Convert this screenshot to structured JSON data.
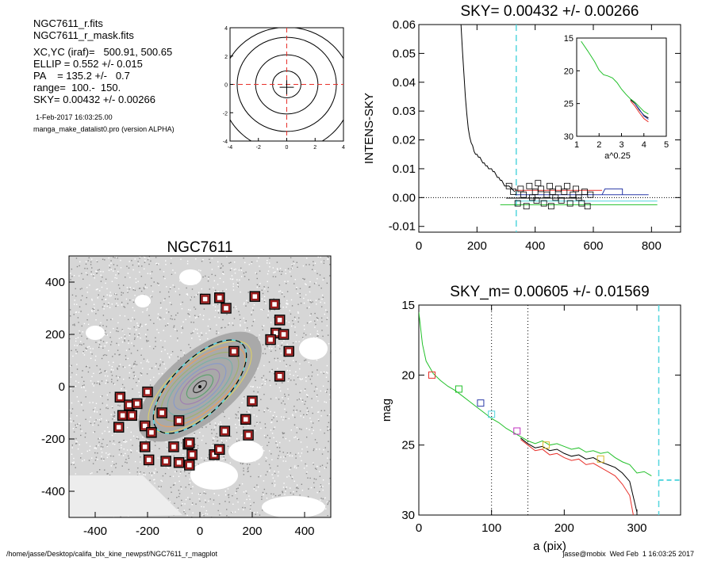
{
  "header": {
    "file1": "NGC7611_r.fits",
    "file2": "NGC7611_r_mask.fits",
    "xcyc": "XC,YC (iraf)=   500.91, 500.65",
    "ellip": "ELLIP = 0.552 +/- 0.015",
    "pa": "PA    = 135.2 +/-   0.7",
    "range": "range=  100.-  150.",
    "sky": "SKY= 0.00432 +/- 0.00266",
    "date": "1-Feb-2017 16:03:25.00",
    "program": "manga_make_datalist0.pro (version ALPHA)"
  },
  "footer": {
    "path": "/home/jasse/Desktop/califa_blx_kine_newpsf/NGC7611_r_magplot",
    "user": "jasse@mobix  Wed Feb  1 16:03:25 2017"
  },
  "colors": {
    "red": "#e8302a",
    "green": "#22c02a",
    "blue": "#2a3aa8",
    "cyan": "#55d6de",
    "magenta": "#c030c0",
    "gold": "#d9b82a"
  },
  "chart_data": [
    {
      "id": "center_contour",
      "type": "contour",
      "xlim": [
        -4,
        4
      ],
      "ylim": [
        -4,
        4
      ],
      "xticks": [
        -4,
        -2,
        0,
        2,
        4
      ],
      "yticks": [
        -4,
        -2,
        0,
        2,
        4
      ],
      "contour_radii": [
        1,
        2.2,
        3.5,
        4.6
      ]
    },
    {
      "id": "sky_profile",
      "type": "line",
      "title": "SKY= 0.00432 +/- 0.00266",
      "ylabel": "INTENS-SKY",
      "xlim": [
        0,
        900
      ],
      "ylim": [
        -0.012,
        0.06
      ],
      "xticks": [
        0,
        200,
        400,
        600,
        800
      ],
      "yticks": [
        -0.01,
        0.0,
        0.01,
        0.02,
        0.03,
        0.04,
        0.05,
        0.06
      ],
      "ytick_labels": [
        "-0.01",
        "0.00",
        "0.01",
        "0.02",
        "0.03",
        "0.04",
        "0.05",
        "0.06"
      ],
      "vline_x": 335,
      "series": [
        {
          "color": "black",
          "x": [
            145,
            150,
            155,
            160,
            165,
            170,
            175,
            180,
            185,
            190,
            195,
            200,
            205,
            210,
            215,
            220,
            225,
            230,
            235,
            240,
            245,
            250,
            255,
            260,
            265,
            270,
            275,
            280,
            285,
            290,
            295,
            300,
            310,
            320,
            330
          ],
          "y": [
            0.06,
            0.051,
            0.043,
            0.035,
            0.029,
            0.024,
            0.021,
            0.019,
            0.018,
            0.016,
            0.015,
            0.015,
            0.014,
            0.014,
            0.013,
            0.012,
            0.012,
            0.011,
            0.011,
            0.01,
            0.01,
            0.01,
            0.009,
            0.009,
            0.008,
            0.007,
            0.007,
            0.006,
            0.006,
            0.005,
            0.004,
            0.004,
            0.004,
            0.003,
            0.002
          ]
        },
        {
          "color": "black",
          "x": [
            130,
            140,
            145
          ],
          "y": [
            0.06,
            0.06,
            0.06
          ]
        }
      ],
      "sky_levels": [
        {
          "color": "red",
          "x": [
            330,
            630
          ],
          "y": 0.0025
        },
        {
          "color": "blue",
          "x": [
            330,
            790
          ],
          "y": 0.001
        },
        {
          "color": "black",
          "x": [
            300,
            560
          ],
          "y": -0.0002
        },
        {
          "color": "green",
          "x": [
            280,
            820
          ],
          "y": -0.0025
        },
        {
          "color": "cyan",
          "x": [
            330,
            820
          ],
          "y": -0.0012
        }
      ],
      "squares": {
        "x": [
          310,
          325,
          340,
          350,
          360,
          370,
          380,
          390,
          400,
          405,
          410,
          420,
          430,
          440,
          450,
          455,
          460,
          470,
          480,
          490,
          500,
          510,
          520,
          530,
          540,
          550,
          560,
          570,
          580,
          590
        ],
        "y": [
          0.004,
          0.002,
          -0.002,
          0.003,
          0.001,
          -0.003,
          0.004,
          0.0,
          0.002,
          -0.001,
          0.005,
          0.003,
          -0.002,
          0.001,
          0.004,
          -0.003,
          0.002,
          0.0,
          0.003,
          -0.001,
          0.002,
          0.004,
          -0.002,
          0.001,
          0.003,
          0.0,
          -0.002,
          0.002,
          -0.003,
          0.001
        ]
      },
      "inset": {
        "type": "line",
        "xlabel": "a^0.25",
        "xlim": [
          1,
          5
        ],
        "ylim": [
          15,
          30
        ],
        "xticks": [
          1,
          2,
          3,
          4,
          5
        ],
        "yticks": [
          15,
          20,
          25,
          30
        ],
        "series": [
          {
            "color": "green",
            "x": [
              1.2,
              1.5,
              1.8,
              2.0,
              2.2,
              2.4,
              2.6,
              2.8,
              3.0,
              3.2,
              3.4,
              3.6,
              3.8,
              4.0,
              4.2
            ],
            "y": [
              15.5,
              17.0,
              18.6,
              19.9,
              20.6,
              20.8,
              21.1,
              21.8,
              22.8,
              23.6,
              24.3,
              24.8,
              25.5,
              26.2,
              26.6
            ]
          },
          {
            "color": "black",
            "x": [
              3.4,
              3.6,
              3.8,
              4.0,
              4.2
            ],
            "y": [
              24.4,
              25.0,
              26.0,
              26.8,
              27.2
            ]
          },
          {
            "color": "red",
            "x": [
              3.4,
              3.6,
              3.8,
              4.0,
              4.2
            ],
            "y": [
              24.6,
              25.4,
              26.4,
              27.3,
              27.8
            ]
          },
          {
            "color": "blue",
            "x": [
              3.6,
              3.8,
              4.0,
              4.2
            ],
            "y": [
              25.0,
              25.9,
              26.9,
              27.4
            ]
          }
        ]
      }
    },
    {
      "id": "mask_image",
      "type": "image",
      "title": "NGC7611",
      "xlim": [
        -500,
        500
      ],
      "ylim": [
        -500,
        500
      ],
      "xticks": [
        -400,
        -200,
        0,
        200,
        400
      ],
      "yticks": [
        -400,
        -200,
        0,
        200,
        400
      ],
      "ellipse": {
        "a": 230,
        "b": 103,
        "pa_deg": 135.2
      },
      "masked_sources": {
        "x": [
          20,
          75,
          100,
          210,
          285,
          305,
          290,
          270,
          320,
          340,
          130,
          -200,
          -210,
          -145,
          -80,
          -210,
          -305,
          -295,
          -260,
          -270,
          -240,
          -310,
          -185,
          -100,
          -195,
          -45,
          -30,
          -80,
          -130,
          -40,
          -40,
          55,
          75,
          185,
          95,
          175,
          200,
          305
        ],
        "y": [
          335,
          340,
          300,
          345,
          315,
          255,
          205,
          180,
          200,
          135,
          135,
          -20,
          -150,
          -100,
          -130,
          -230,
          -40,
          -110,
          -110,
          -70,
          -65,
          -155,
          -175,
          -230,
          -280,
          -220,
          -260,
          -290,
          -285,
          -300,
          -215,
          -260,
          -240,
          -185,
          -170,
          -125,
          -55,
          40
        ]
      }
    },
    {
      "id": "mag_profile",
      "type": "line",
      "title": "SKY_m=  0.00605 +/- 0.01569",
      "xlabel": "a (pix)",
      "ylabel": "mag",
      "xlim": [
        0,
        360
      ],
      "ylim": [
        15,
        30
      ],
      "xticks": [
        0,
        100,
        200,
        300
      ],
      "yticks": [
        15,
        20,
        25,
        30
      ],
      "vlines_dotted": [
        100,
        150
      ],
      "vline_dashed": 330,
      "series": [
        {
          "color": "green",
          "x": [
            0,
            5,
            10,
            20,
            30,
            40,
            50,
            60,
            70,
            80,
            90,
            100,
            110,
            120,
            130,
            140,
            150,
            160,
            170,
            180,
            190,
            200,
            210,
            220,
            230,
            240,
            250,
            260,
            270,
            280,
            290,
            300,
            310,
            320
          ],
          "y": [
            15.5,
            17.8,
            19.0,
            19.9,
            20.4,
            20.8,
            21.1,
            21.5,
            21.9,
            22.3,
            22.7,
            23.1,
            23.4,
            23.8,
            24.1,
            24.4,
            24.7,
            24.9,
            24.7,
            25.0,
            24.9,
            25.1,
            25.3,
            25.2,
            25.5,
            25.4,
            25.6,
            25.5,
            25.9,
            26.2,
            26.4,
            27.0,
            26.9,
            27.2
          ]
        },
        {
          "color": "black",
          "x": [
            140,
            150,
            160,
            170,
            180,
            190,
            200,
            210,
            220,
            230,
            240,
            250,
            260,
            270,
            280,
            290,
            300
          ],
          "y": [
            24.5,
            24.9,
            25.2,
            25.1,
            25.4,
            25.3,
            25.6,
            25.8,
            25.7,
            26.0,
            25.9,
            26.2,
            26.4,
            26.6,
            27.0,
            27.6,
            29.8
          ]
        },
        {
          "color": "red",
          "x": [
            140,
            150,
            160,
            170,
            180,
            190,
            200,
            210,
            220,
            230,
            240,
            250,
            260,
            270,
            280,
            290,
            295
          ],
          "y": [
            24.6,
            25.0,
            25.4,
            25.3,
            25.7,
            25.6,
            25.9,
            26.1,
            26.0,
            26.4,
            26.3,
            26.6,
            26.9,
            27.2,
            27.8,
            28.6,
            30.0
          ]
        },
        {
          "color": "cyan",
          "x": [
            330,
            345,
            360
          ],
          "y": [
            27.5,
            27.5,
            27.5
          ]
        }
      ],
      "squares": [
        {
          "color": "red",
          "x": 18,
          "y": 20.0
        },
        {
          "color": "green",
          "x": 55,
          "y": 21.0
        },
        {
          "color": "blue",
          "x": 85,
          "y": 22.0
        },
        {
          "color": "cyan",
          "x": 100,
          "y": 22.8
        },
        {
          "color": "magenta",
          "x": 135,
          "y": 24.0
        },
        {
          "color": "gold",
          "x": 175,
          "y": 25.0
        },
        {
          "color": "gold",
          "x": 250,
          "y": 26.0
        }
      ]
    }
  ]
}
